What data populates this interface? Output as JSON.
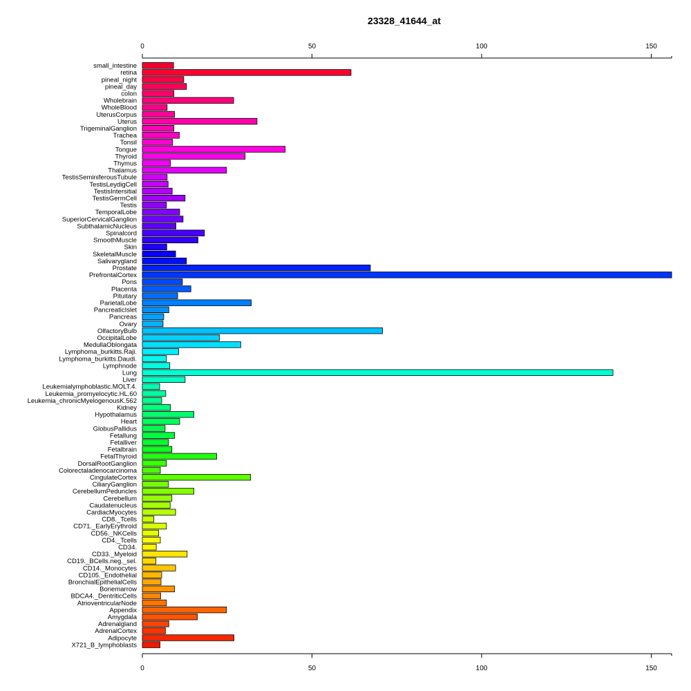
{
  "chart_data": {
    "type": "bar",
    "orientation": "horizontal",
    "title": "23328_41644_at",
    "xlabel": "",
    "ylabel": "",
    "xlim": [
      0,
      156
    ],
    "x_ticks": [
      0,
      50,
      100,
      150
    ],
    "axes": [
      "top",
      "bottom"
    ],
    "grid": false,
    "legend": "none",
    "categories": [
      "small_intestine",
      "retina",
      "pineal_night",
      "pineal_day",
      "colon",
      "Wholebrain",
      "WholeBlood",
      "UterusCorpus",
      "Uterus",
      "TrigeminalGanglion",
      "Trachea",
      "Tonsil",
      "Tongue",
      "Thyroid",
      "Thymus",
      "Thalamus",
      "TestisSeminiferousTubule",
      "TestisLeydigCell",
      "TestisIntersitial",
      "TestisGermCell",
      "Testis",
      "TemporalLobe",
      "SuperiorCervicalGanglion",
      "SubthalamicNucleus",
      "Spinalcord",
      "SmoothMuscle",
      "Skin",
      "SkeletalMuscle",
      "Salivarygland",
      "Prostate",
      "PrefrontalCortex",
      "Pons",
      "Placenta",
      "Pituitary",
      "ParietalLobe",
      "PancreaticIslet",
      "Pancreas",
      "Ovary",
      "OlfactoryBulb",
      "OccipitalLobe",
      "MedullaOblongata",
      "Lymphoma_burkitts.Raji.",
      "Lymphoma_burkitts.Daudi.",
      "Lymphnode",
      "Lung",
      "Liver",
      "Leukemialymphoblastic.MOLT.4.",
      "Leukemia_promyelocytic.HL.60",
      "Leukemia_chronicMyelogenousK.562",
      "Kidney",
      "Hypothalamus",
      "Heart",
      "GlobusPallidus",
      "Fetallung",
      "Fetalliver",
      "Fetalbrain",
      "FetalThyroid",
      "DorsalRootGanglion",
      "Colorectaladenocarcinoma",
      "CingulateCortex",
      "CiliaryGanglion",
      "CerebellumPeduncles",
      "Cerebellum",
      "Caudatenucleus",
      "CardiacMyocytes",
      "CD8._Tcells",
      "CD71._EarlyErythroid",
      "CD56._NKCells",
      "CD4._Tcells",
      "CD34.",
      "CD33._Myeloid",
      "CD19._BCells.neg._sel.",
      "CD14._Monocytes",
      "CD105._Endothelial",
      "BronchialEpithelialCells",
      "Bonemarrow",
      "BDCA4._DentriticCells",
      "AtrioventricularNode",
      "Appendix",
      "Amygdala",
      "Adrenalgland",
      "AdrenalCortex",
      "Adipocyte",
      "X721_B_lymphoblasts"
    ],
    "values": [
      9.2,
      61.5,
      12.2,
      13.0,
      9.3,
      26.9,
      7.3,
      9.5,
      33.8,
      9.3,
      10.9,
      8.9,
      42.1,
      30.3,
      8.3,
      24.8,
      7.3,
      7.6,
      8.8,
      12.6,
      7.1,
      11.0,
      12.0,
      9.9,
      18.3,
      16.4,
      7.2,
      9.8,
      13.0,
      67.2,
      156.0,
      11.8,
      14.3,
      10.4,
      32.1,
      7.8,
      6.3,
      6.1,
      70.8,
      22.7,
      29.0,
      10.7,
      7.1,
      8.1,
      138.7,
      12.6,
      5.1,
      6.9,
      5.7,
      8.3,
      15.2,
      11.0,
      6.7,
      9.5,
      7.7,
      8.7,
      21.9,
      7.1,
      5.3,
      31.9,
      7.7,
      15.2,
      8.7,
      8.2,
      9.8,
      3.4,
      7.1,
      4.8,
      5.3,
      4.1,
      13.2,
      4.0,
      9.8,
      5.7,
      5.5,
      9.5,
      5.4,
      7.1,
      24.8,
      16.2,
      7.8,
      6.8,
      27.0,
      5.2
    ],
    "colors": [
      "#f5002e",
      "#ff0031",
      "#fa0045",
      "#ff0058",
      "#ff006a",
      "#ff007b",
      "#ff008b",
      "#ff009a",
      "#ff00a9",
      "#ff00b7",
      "#ff00c5",
      "#ff00d3",
      "#ff00e0",
      "#ff00ed",
      "#f100f6",
      "#e200f7",
      "#d300f9",
      "#c400fa",
      "#b400fb",
      "#a300fc",
      "#9200fd",
      "#8100fe",
      "#6f00fe",
      "#5c00ff",
      "#4800ff",
      "#3300ff",
      "#1e00ff",
      "#0800ff",
      "#000dff",
      "#0022ff",
      "#0036ff",
      "#0049ff",
      "#005cff",
      "#006eff",
      "#0080ff",
      "#0091ff",
      "#00a2ff",
      "#00b2ff",
      "#00c2ff",
      "#00d1ff",
      "#00e0ff",
      "#00eefd",
      "#00fbf0",
      "#00ffe2",
      "#00ffd2",
      "#00ffc2",
      "#00ffb1",
      "#00ffa0",
      "#00ff8f",
      "#00ff7e",
      "#00ff6d",
      "#00ff5c",
      "#00ff4b",
      "#00ff3b",
      "#00ff2c",
      "#0cff1e",
      "#22ff11",
      "#37ff05",
      "#4bff00",
      "#5eff00",
      "#70ff00",
      "#82ff00",
      "#94ff00",
      "#a5ff00",
      "#b6ff00",
      "#c7ff00",
      "#d8ff00",
      "#e8ff00",
      "#f8ff00",
      "#fff400",
      "#ffe500",
      "#ffd600",
      "#ffc600",
      "#ffb600",
      "#ffa600",
      "#ff9600",
      "#ff8500",
      "#ff7400",
      "#ff6400",
      "#ff5400",
      "#ff4400",
      "#ff3400",
      "#f92600",
      "#f21800"
    ]
  }
}
